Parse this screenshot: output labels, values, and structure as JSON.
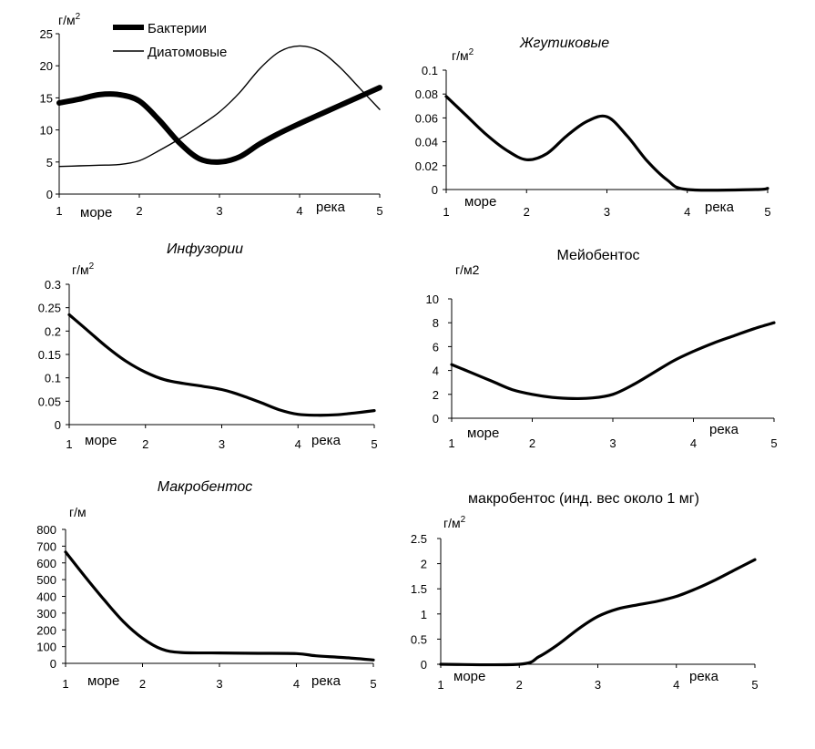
{
  "chart_data": [
    {
      "type": "line",
      "title": "",
      "ylabel": "г/м²",
      "ylim": [
        0,
        25
      ],
      "yticks": [
        "0",
        "5",
        "10",
        "15",
        "20",
        "25"
      ],
      "xlim": [
        1,
        5
      ],
      "xticks": [
        "1",
        "2",
        "3",
        "4",
        "5"
      ],
      "annotations": [
        "море",
        "река"
      ],
      "legend": "top-left",
      "series": [
        {
          "name": "Бактерии",
          "width": "thick",
          "x": [
            1,
            1.25,
            1.5,
            1.75,
            2,
            2.25,
            2.5,
            2.75,
            3,
            3.25,
            3.5,
            3.75,
            4,
            4.25,
            4.5,
            4.75,
            5
          ],
          "y": [
            14.2,
            14.8,
            15.5,
            15.5,
            14.5,
            11.5,
            8.0,
            5.5,
            5.0,
            5.8,
            7.8,
            9.5,
            11.0,
            12.4,
            13.8,
            15.2,
            16.6
          ]
        },
        {
          "name": "Диатомовые",
          "width": "thin",
          "x": [
            1,
            1.25,
            1.5,
            1.75,
            2,
            2.25,
            2.5,
            2.75,
            3,
            3.25,
            3.5,
            3.75,
            4,
            4.25,
            4.5,
            4.75,
            5
          ],
          "y": [
            4.3,
            4.4,
            4.5,
            4.6,
            5.2,
            6.8,
            8.6,
            10.6,
            12.8,
            15.8,
            19.5,
            22.2,
            23.1,
            22.3,
            19.8,
            16.5,
            13.2
          ]
        }
      ]
    },
    {
      "type": "line",
      "title": "Жгутиковые",
      "ylabel": "г/м²",
      "ylim": [
        0,
        0.1
      ],
      "yticks": [
        "0",
        "0.02",
        "0.04",
        "0.06",
        "0.08",
        "0.1"
      ],
      "xlim": [
        1,
        5
      ],
      "xticks": [
        "1",
        "2",
        "3",
        "4",
        "5"
      ],
      "annotations": [
        "море",
        "река"
      ],
      "series": [
        {
          "width": "medium",
          "x": [
            1,
            1.25,
            1.5,
            1.75,
            2,
            2.25,
            2.5,
            2.75,
            3,
            3.25,
            3.5,
            3.75,
            4,
            4.85,
            5
          ],
          "y": [
            0.078,
            0.062,
            0.046,
            0.033,
            0.025,
            0.03,
            0.045,
            0.057,
            0.061,
            0.045,
            0.024,
            0.008,
            0.0,
            0.0,
            0.001
          ]
        }
      ]
    },
    {
      "type": "line",
      "title": "Инфузории",
      "ylabel": "г/м²",
      "ylim": [
        0,
        0.3
      ],
      "yticks": [
        "0",
        "0.05",
        "0.1",
        "0.15",
        "0.2",
        "0.25",
        "0.3"
      ],
      "xlim": [
        1,
        5
      ],
      "xticks": [
        "1",
        "2",
        "3",
        "4",
        "5"
      ],
      "annotations": [
        "море",
        "река"
      ],
      "series": [
        {
          "width": "medium",
          "x": [
            1,
            1.25,
            1.5,
            1.75,
            2,
            2.25,
            2.5,
            2.75,
            3,
            3.25,
            3.5,
            3.75,
            4,
            4.25,
            4.5,
            4.75,
            5
          ],
          "y": [
            0.235,
            0.2,
            0.165,
            0.135,
            0.112,
            0.096,
            0.088,
            0.082,
            0.075,
            0.063,
            0.048,
            0.032,
            0.022,
            0.02,
            0.021,
            0.025,
            0.03
          ]
        }
      ]
    },
    {
      "type": "line",
      "title": "Мейобентос",
      "ylabel": "г/м2",
      "ylim": [
        0,
        10
      ],
      "yticks": [
        "0",
        "2",
        "4",
        "6",
        "8",
        "10"
      ],
      "xlim": [
        1,
        5
      ],
      "xticks": [
        "1",
        "2",
        "3",
        "4",
        "5"
      ],
      "annotations": [
        "море",
        "река"
      ],
      "series": [
        {
          "width": "medium",
          "x": [
            1,
            1.25,
            1.5,
            1.75,
            2,
            2.25,
            2.5,
            2.75,
            3,
            3.25,
            3.5,
            3.75,
            4,
            4.25,
            4.5,
            4.75,
            5
          ],
          "y": [
            4.5,
            3.8,
            3.1,
            2.4,
            2.0,
            1.75,
            1.65,
            1.7,
            2.0,
            2.8,
            3.8,
            4.8,
            5.6,
            6.3,
            6.9,
            7.5,
            8.0
          ]
        }
      ]
    },
    {
      "type": "line",
      "title": "Макробентос",
      "ylabel": "г/м",
      "ylim": [
        0,
        800
      ],
      "yticks": [
        "0",
        "100",
        "200",
        "300",
        "400",
        "500",
        "600",
        "700",
        "800"
      ],
      "xlim": [
        1,
        5
      ],
      "xticks": [
        "1",
        "2",
        "3",
        "4",
        "5"
      ],
      "annotations": [
        "море",
        "река"
      ],
      "series": [
        {
          "width": "medium",
          "x": [
            1,
            1.25,
            1.5,
            1.75,
            2,
            2.25,
            2.5,
            3,
            3.5,
            4,
            4.25,
            4.5,
            4.75,
            5
          ],
          "y": [
            665,
            520,
            380,
            250,
            150,
            85,
            65,
            62,
            60,
            58,
            45,
            38,
            30,
            20
          ]
        }
      ]
    },
    {
      "type": "line",
      "title": "макробентос (инд. вес около 1 мг)",
      "ylabel": "г/м²",
      "ylim": [
        0,
        2.5
      ],
      "yticks": [
        "0",
        "0.5",
        "1",
        "1.5",
        "2",
        "2.5"
      ],
      "xlim": [
        1,
        5
      ],
      "xticks": [
        "1",
        "2",
        "3",
        "4",
        "5"
      ],
      "annotations": [
        "море",
        "река"
      ],
      "series": [
        {
          "width": "medium",
          "x": [
            1,
            2,
            2.25,
            2.5,
            2.75,
            3,
            3.25,
            3.5,
            3.75,
            4,
            4.25,
            4.5,
            4.75,
            5
          ],
          "y": [
            0,
            0,
            0.15,
            0.4,
            0.7,
            0.95,
            1.1,
            1.18,
            1.25,
            1.35,
            1.5,
            1.68,
            1.88,
            2.08
          ]
        }
      ]
    }
  ]
}
